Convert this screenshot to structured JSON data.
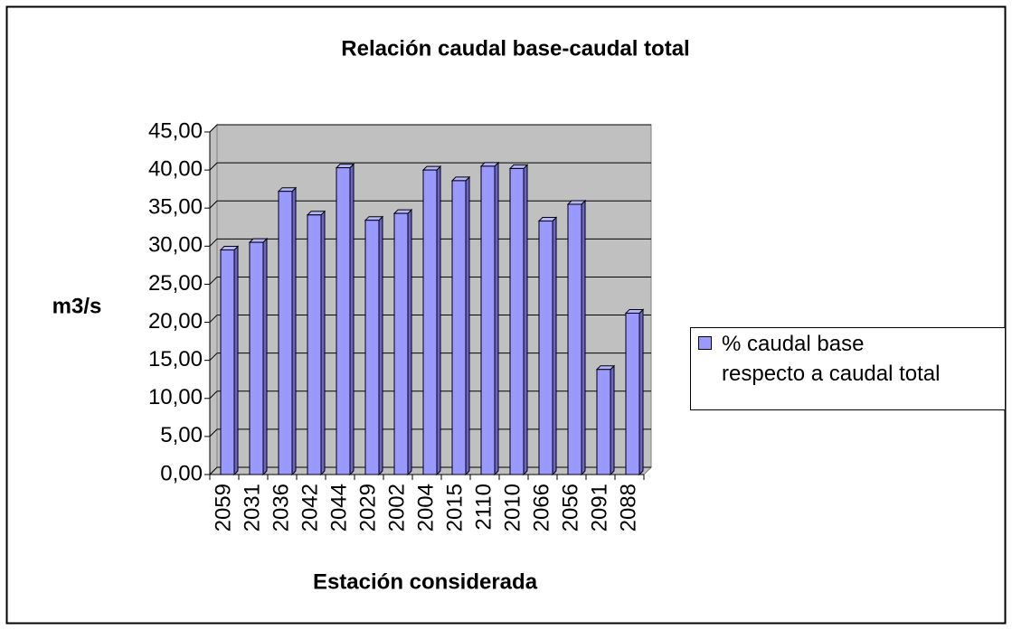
{
  "chart_data": {
    "type": "bar3d",
    "title": "Relación caudal base-caudal total",
    "x_label": "Estación considerada",
    "y_label": "m3/s",
    "categories": [
      "2059",
      "2031",
      "2036",
      "2042",
      "2044",
      "2029",
      "2002",
      "2004",
      "2015",
      "2110",
      "2010",
      "2066",
      "2056",
      "2091",
      "2088"
    ],
    "series": [
      {
        "name": "% caudal base\nrespecto a caudal total",
        "color": "#9999ff",
        "values": [
          29.5,
          30.5,
          37.2,
          34.1,
          40.3,
          33.4,
          34.3,
          40.0,
          38.6,
          40.5,
          40.2,
          33.3,
          35.5,
          13.8,
          21.2
        ]
      }
    ],
    "ylim": [
      0,
      45
    ],
    "yticks": [
      {
        "value": 0,
        "label": "0,00"
      },
      {
        "value": 5,
        "label": "5,00"
      },
      {
        "value": 10,
        "label": "10,00"
      },
      {
        "value": 15,
        "label": "15,00"
      },
      {
        "value": 20,
        "label": "20,00"
      },
      {
        "value": 25,
        "label": "25,00"
      },
      {
        "value": 30,
        "label": "30,00"
      },
      {
        "value": 35,
        "label": "35,00"
      },
      {
        "value": 40,
        "label": "40,00"
      },
      {
        "value": 45,
        "label": "45,00"
      }
    ],
    "grid": true,
    "legend": "right"
  }
}
